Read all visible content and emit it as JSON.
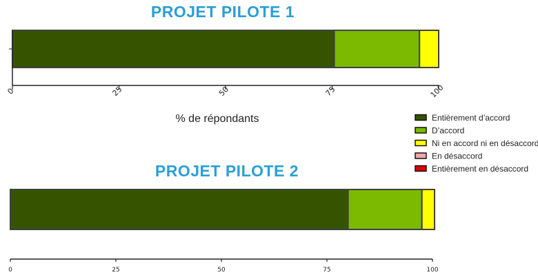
{
  "chart_data": [
    {
      "type": "bar",
      "orientation": "horizontal",
      "stacked": true,
      "title": "PROJET PILOTE 1",
      "xlabel": "% de répondants",
      "xlim": [
        0,
        100
      ],
      "xticks": [
        "0",
        "25",
        "50",
        "75",
        "100"
      ],
      "xtick_rotation": "diagonal",
      "series": [
        {
          "name": "Entièrement d'accord",
          "values": [
            75.5
          ],
          "color": "#365400"
        },
        {
          "name": "D'accord",
          "values": [
            20
          ],
          "color": "#7bba00"
        },
        {
          "name": "Ni en accord ni en désaccord",
          "values": [
            4.5
          ],
          "color": "#ffff00"
        },
        {
          "name": "En désaccord",
          "values": [
            0
          ],
          "color": "#f4a9a9"
        },
        {
          "name": "Entièrement en désaccord",
          "values": [
            0
          ],
          "color": "#e00000"
        }
      ]
    },
    {
      "type": "bar",
      "orientation": "horizontal",
      "stacked": true,
      "title": "PROJET PILOTE 2",
      "xlabel": "",
      "xlim": [
        0,
        100
      ],
      "xticks": [
        "0",
        "25",
        "50",
        "75",
        "100"
      ],
      "xtick_rotation": "none",
      "series": [
        {
          "name": "Entièrement d'accord",
          "values": [
            80
          ],
          "color": "#365400"
        },
        {
          "name": "D'accord",
          "values": [
            17.5
          ],
          "color": "#7bba00"
        },
        {
          "name": "Ni en accord ni en désaccord",
          "values": [
            3
          ],
          "color": "#ffff00"
        },
        {
          "name": "En désaccord",
          "values": [
            0
          ],
          "color": "#f4a9a9"
        },
        {
          "name": "Entièrement en désaccord",
          "values": [
            0
          ],
          "color": "#e00000"
        }
      ]
    }
  ],
  "legend": {
    "placement": "right",
    "items": [
      {
        "label": "Entièrement d’accord",
        "color": "#365400"
      },
      {
        "label": "D’accord",
        "color": "#7bba00"
      },
      {
        "label": "Ni en accord ni en désaccord",
        "color": "#ffff00"
      },
      {
        "label": "En désaccord",
        "color": "#f4a9a9"
      },
      {
        "label": "Entièrement en désaccord",
        "color": "#e00000"
      }
    ]
  },
  "colors": {
    "title": "#2a9fd6",
    "bar_outline": "#404040",
    "axis": "#222222"
  }
}
